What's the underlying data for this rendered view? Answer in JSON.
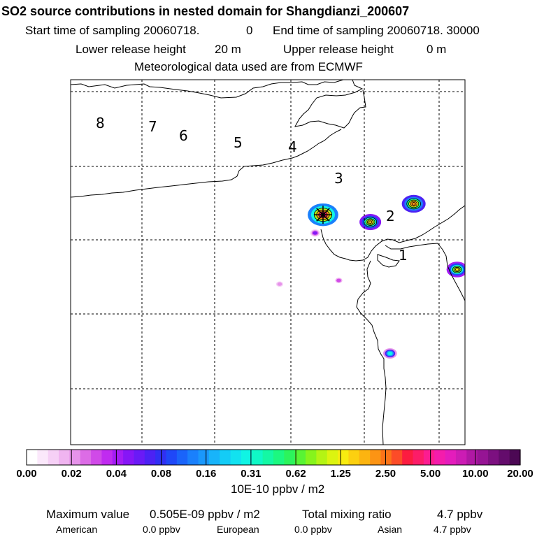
{
  "header": {
    "title": "SO2 source contributions in nested domain for Shangdianzi_200607",
    "start_label": "Start time of sampling 20060718.",
    "start_value": "0",
    "end_label": "End time of sampling 20060718. 30000",
    "lower_label": "Lower release height",
    "lower_value": "20 m",
    "upper_label": "Upper release height",
    "upper_value": "0 m",
    "met": "Meteorological data used are from ECMWF"
  },
  "chart_data": {
    "type": "heatmap",
    "title": "SO2 source contributions in nested domain for Shangdianzi_200607",
    "grid": true,
    "region_labels": [
      "8",
      "7",
      "6",
      "5",
      "4",
      "3",
      "2",
      "1"
    ],
    "receptor_marker": "star",
    "colorbar": {
      "tick_labels": [
        "0.00",
        "0.02",
        "0.04",
        "0.08",
        "0.16",
        "0.31",
        "0.62",
        "1.25",
        "2.50",
        "5.00",
        "10.00",
        "20.00"
      ],
      "unit": "10E-10 ppbv / m2",
      "colors": [
        "#ffffff",
        "#fbe8fb",
        "#f6d0f6",
        "#f0b4f0",
        "#e693ea",
        "#dc6ce6",
        "#d04ae8",
        "#c02bf0",
        "#a41cf4",
        "#8616f6",
        "#6a1af6",
        "#4c22f4",
        "#3030f4",
        "#1f48f8",
        "#1a64fa",
        "#1a80fc",
        "#1a98fc",
        "#18b4fa",
        "#14ccf6",
        "#12e2f0",
        "#10f4e4",
        "#10f8c6",
        "#14f8a4",
        "#1cf880",
        "#2cf45c",
        "#58f434",
        "#86f41c",
        "#b4f414",
        "#dcf410",
        "#f8ec10",
        "#fcd010",
        "#fcb410",
        "#fc9414",
        "#fc7418",
        "#fc4c28",
        "#fc1c40",
        "#fc1c68",
        "#fc1c90",
        "#f41cac",
        "#e41cbc",
        "#cc1cb4",
        "#b018a4",
        "#961494",
        "#7c1080",
        "#640c6c",
        "#4c0854"
      ]
    },
    "hotspots": [
      {
        "lon": 0.64,
        "lat": 0.37,
        "value": 4.5,
        "note": "receptor"
      },
      {
        "lon": 0.76,
        "lat": 0.39,
        "value": 1.6
      },
      {
        "lon": 0.87,
        "lat": 0.34,
        "value": 2.3
      },
      {
        "lon": 0.98,
        "lat": 0.52,
        "value": 1.4
      },
      {
        "lon": 0.81,
        "lat": 0.75,
        "value": 0.3
      },
      {
        "lon": 0.62,
        "lat": 0.42,
        "value": 0.05
      },
      {
        "lon": 0.68,
        "lat": 0.55,
        "value": 0.03
      },
      {
        "lon": 0.53,
        "lat": 0.56,
        "value": 0.02
      }
    ]
  },
  "footer": {
    "max_label": "Maximum value",
    "max_value": "0.505E-09 ppbv / m2",
    "total_label": "Total mixing ratio",
    "total_value": "4.7 ppbv",
    "american_label": "American",
    "american_value": "0.0 ppbv",
    "european_label": "European",
    "european_value": "0.0 ppbv",
    "asian_label": "Asian",
    "asian_value": "4.7 ppbv"
  }
}
